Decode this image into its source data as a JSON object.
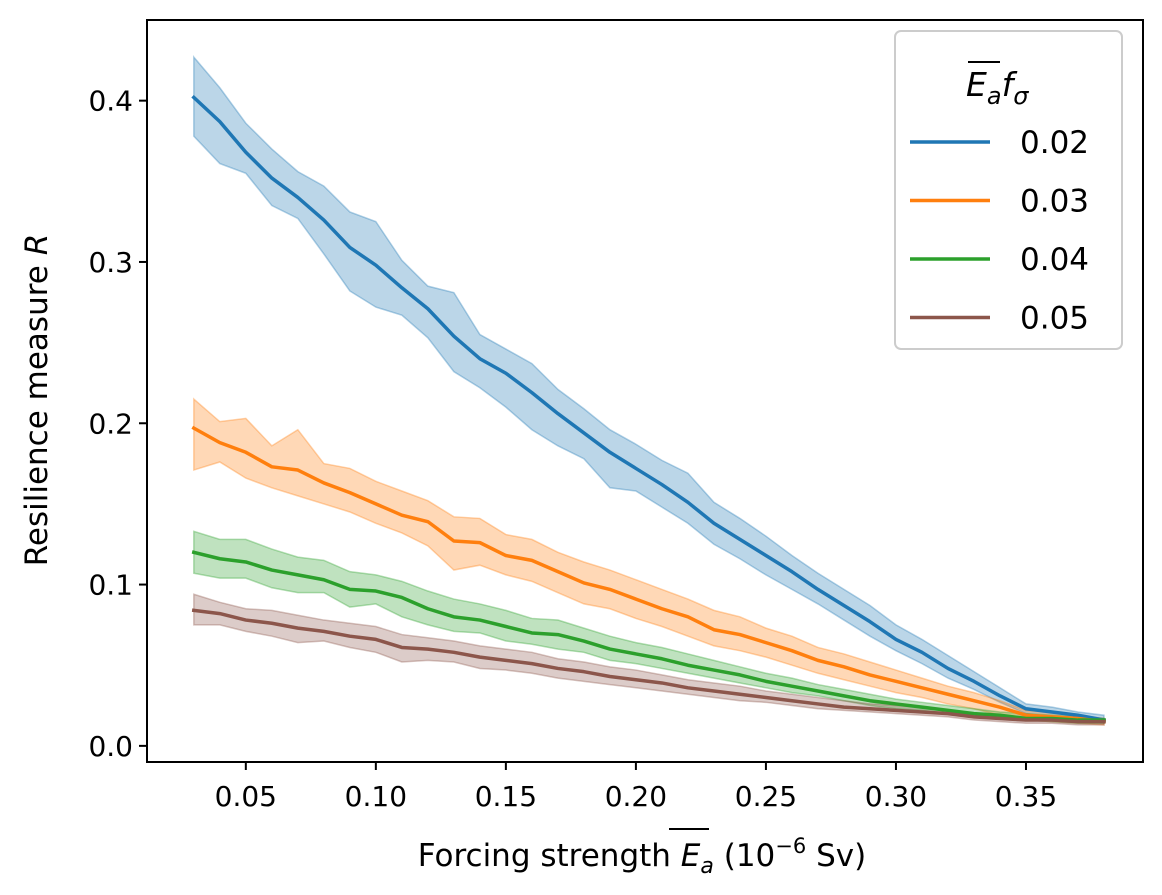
{
  "chart_data": {
    "type": "line",
    "title": "",
    "xlabel": "Forcing strength",
    "xlabel_symbol": "E",
    "xlabel_symbol_sub": "a",
    "xlabel_unit_open": "(10",
    "xlabel_unit_exp": "−6",
    "xlabel_unit_close": " Sv)",
    "ylabel": "Resilience measure",
    "ylabel_symbol": "R",
    "xlim": [
      0.012,
      0.395
    ],
    "ylim": [
      -0.01,
      0.45
    ],
    "xticks": [
      0.05,
      0.1,
      0.15,
      0.2,
      0.25,
      0.3,
      0.35
    ],
    "xtick_labels": [
      "0.05",
      "0.10",
      "0.15",
      "0.20",
      "0.25",
      "0.30",
      "0.35"
    ],
    "yticks": [
      0.0,
      0.1,
      0.2,
      0.3,
      0.4
    ],
    "ytick_labels": [
      "0.0",
      "0.1",
      "0.2",
      "0.3",
      "0.4"
    ],
    "grid": false,
    "legend": {
      "placement": "top-right",
      "title_main": "E",
      "title_sub": "a",
      "title_f": "f",
      "title_sigma": "σ"
    },
    "x": [
      0.03,
      0.04,
      0.05,
      0.06,
      0.07,
      0.08,
      0.09,
      0.1,
      0.11,
      0.12,
      0.13,
      0.14,
      0.15,
      0.16,
      0.17,
      0.18,
      0.19,
      0.2,
      0.21,
      0.22,
      0.23,
      0.24,
      0.25,
      0.26,
      0.27,
      0.28,
      0.29,
      0.3,
      0.31,
      0.32,
      0.33,
      0.34,
      0.35,
      0.36,
      0.37,
      0.38
    ],
    "series": [
      {
        "name": "0.02",
        "color": "#1f77b4",
        "values": [
          0.402,
          0.387,
          0.368,
          0.352,
          0.34,
          0.326,
          0.309,
          0.298,
          0.284,
          0.271,
          0.254,
          0.24,
          0.231,
          0.219,
          0.206,
          0.194,
          0.182,
          0.172,
          0.162,
          0.151,
          0.138,
          0.128,
          0.118,
          0.108,
          0.097,
          0.087,
          0.077,
          0.066,
          0.058,
          0.048,
          0.04,
          0.031,
          0.023,
          0.021,
          0.019,
          0.016
        ],
        "lower": [
          0.378,
          0.361,
          0.355,
          0.335,
          0.327,
          0.305,
          0.282,
          0.272,
          0.267,
          0.253,
          0.232,
          0.222,
          0.21,
          0.196,
          0.186,
          0.178,
          0.16,
          0.158,
          0.148,
          0.138,
          0.125,
          0.116,
          0.106,
          0.097,
          0.088,
          0.078,
          0.068,
          0.059,
          0.051,
          0.042,
          0.035,
          0.027,
          0.02,
          0.018,
          0.016,
          0.014
        ],
        "upper": [
          0.427,
          0.408,
          0.386,
          0.37,
          0.356,
          0.347,
          0.331,
          0.325,
          0.301,
          0.285,
          0.281,
          0.255,
          0.246,
          0.237,
          0.221,
          0.209,
          0.196,
          0.187,
          0.177,
          0.169,
          0.151,
          0.141,
          0.13,
          0.118,
          0.107,
          0.097,
          0.087,
          0.075,
          0.066,
          0.056,
          0.046,
          0.036,
          0.026,
          0.024,
          0.021,
          0.019
        ]
      },
      {
        "name": "0.03",
        "color": "#ff7f0e",
        "values": [
          0.197,
          0.188,
          0.182,
          0.173,
          0.171,
          0.163,
          0.157,
          0.15,
          0.143,
          0.139,
          0.127,
          0.126,
          0.118,
          0.115,
          0.108,
          0.101,
          0.097,
          0.091,
          0.085,
          0.08,
          0.072,
          0.069,
          0.064,
          0.059,
          0.053,
          0.049,
          0.044,
          0.04,
          0.036,
          0.032,
          0.028,
          0.024,
          0.019,
          0.018,
          0.017,
          0.015
        ],
        "lower": [
          0.171,
          0.176,
          0.166,
          0.16,
          0.155,
          0.15,
          0.145,
          0.138,
          0.132,
          0.124,
          0.109,
          0.112,
          0.106,
          0.102,
          0.095,
          0.088,
          0.085,
          0.079,
          0.074,
          0.068,
          0.062,
          0.059,
          0.055,
          0.05,
          0.045,
          0.041,
          0.037,
          0.033,
          0.03,
          0.026,
          0.023,
          0.019,
          0.016,
          0.015,
          0.014,
          0.013
        ],
        "upper": [
          0.215,
          0.201,
          0.203,
          0.186,
          0.196,
          0.175,
          0.172,
          0.164,
          0.158,
          0.152,
          0.142,
          0.141,
          0.131,
          0.128,
          0.12,
          0.114,
          0.109,
          0.103,
          0.097,
          0.091,
          0.084,
          0.08,
          0.073,
          0.068,
          0.061,
          0.057,
          0.052,
          0.047,
          0.042,
          0.037,
          0.033,
          0.028,
          0.022,
          0.021,
          0.019,
          0.017
        ]
      },
      {
        "name": "0.04",
        "color": "#2ca02c",
        "values": [
          0.12,
          0.116,
          0.114,
          0.109,
          0.106,
          0.103,
          0.097,
          0.096,
          0.092,
          0.085,
          0.08,
          0.078,
          0.074,
          0.07,
          0.069,
          0.065,
          0.06,
          0.057,
          0.054,
          0.05,
          0.047,
          0.044,
          0.04,
          0.037,
          0.034,
          0.031,
          0.028,
          0.026,
          0.024,
          0.022,
          0.02,
          0.019,
          0.017,
          0.017,
          0.016,
          0.016
        ],
        "lower": [
          0.107,
          0.104,
          0.104,
          0.098,
          0.095,
          0.095,
          0.086,
          0.088,
          0.08,
          0.075,
          0.071,
          0.07,
          0.065,
          0.063,
          0.06,
          0.058,
          0.053,
          0.051,
          0.048,
          0.045,
          0.042,
          0.039,
          0.036,
          0.033,
          0.031,
          0.028,
          0.025,
          0.023,
          0.022,
          0.02,
          0.018,
          0.017,
          0.016,
          0.015,
          0.014,
          0.014
        ],
        "upper": [
          0.133,
          0.128,
          0.128,
          0.122,
          0.117,
          0.115,
          0.108,
          0.106,
          0.102,
          0.096,
          0.091,
          0.088,
          0.084,
          0.079,
          0.078,
          0.073,
          0.068,
          0.064,
          0.061,
          0.057,
          0.053,
          0.049,
          0.045,
          0.042,
          0.038,
          0.035,
          0.032,
          0.029,
          0.027,
          0.025,
          0.023,
          0.021,
          0.02,
          0.019,
          0.018,
          0.017
        ]
      },
      {
        "name": "0.05",
        "color": "#8c564b",
        "values": [
          0.084,
          0.082,
          0.078,
          0.076,
          0.073,
          0.071,
          0.068,
          0.066,
          0.061,
          0.06,
          0.058,
          0.055,
          0.053,
          0.051,
          0.048,
          0.046,
          0.043,
          0.041,
          0.039,
          0.036,
          0.034,
          0.032,
          0.03,
          0.028,
          0.026,
          0.024,
          0.023,
          0.022,
          0.021,
          0.02,
          0.018,
          0.017,
          0.016,
          0.016,
          0.015,
          0.015
        ],
        "lower": [
          0.075,
          0.075,
          0.071,
          0.068,
          0.064,
          0.065,
          0.061,
          0.058,
          0.052,
          0.053,
          0.052,
          0.048,
          0.047,
          0.045,
          0.042,
          0.04,
          0.038,
          0.036,
          0.034,
          0.032,
          0.03,
          0.028,
          0.027,
          0.025,
          0.023,
          0.022,
          0.021,
          0.02,
          0.019,
          0.018,
          0.016,
          0.015,
          0.014,
          0.014,
          0.013,
          0.013
        ],
        "upper": [
          0.094,
          0.089,
          0.085,
          0.084,
          0.081,
          0.078,
          0.076,
          0.074,
          0.069,
          0.067,
          0.065,
          0.062,
          0.06,
          0.058,
          0.054,
          0.052,
          0.049,
          0.047,
          0.044,
          0.041,
          0.039,
          0.037,
          0.034,
          0.032,
          0.03,
          0.028,
          0.026,
          0.025,
          0.024,
          0.022,
          0.02,
          0.019,
          0.018,
          0.018,
          0.017,
          0.017
        ]
      }
    ]
  }
}
